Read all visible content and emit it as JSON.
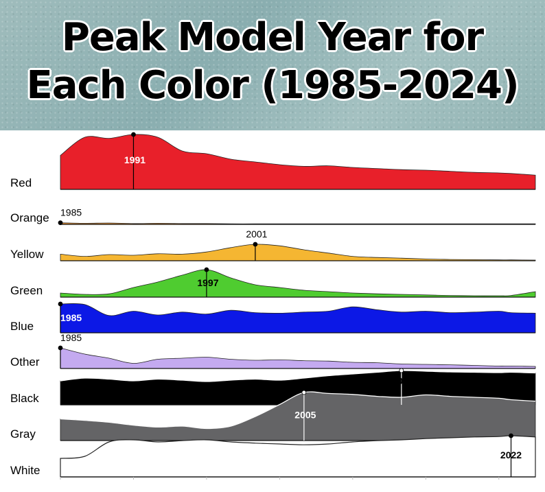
{
  "title_lines": [
    "Peak Model Year for",
    "Each Color (1985-2024)"
  ],
  "chart_data": {
    "type": "area",
    "title": "Peak Model Year for Each Color (1985-2024)",
    "x_range": [
      1985,
      2024
    ],
    "x": [
      1985,
      1987,
      1989,
      1991,
      1993,
      1995,
      1997,
      1999,
      2001,
      2003,
      2005,
      2007,
      2009,
      2011,
      2013,
      2015,
      2017,
      2019,
      2021,
      2022,
      2024
    ],
    "series": [
      {
        "name": "Red",
        "color": "#e8202a",
        "peak_year": "1991",
        "peak_label_color": "#ffffff",
        "peak_label_pos": "inside",
        "values": [
          0.62,
          0.95,
          0.93,
          1.0,
          0.95,
          0.7,
          0.65,
          0.55,
          0.5,
          0.45,
          0.42,
          0.43,
          0.4,
          0.38,
          0.36,
          0.35,
          0.33,
          0.31,
          0.3,
          0.29,
          0.26
        ]
      },
      {
        "name": "Orange",
        "color": "#e08a2c",
        "peak_year": "1985",
        "peak_label_color": "#000000",
        "peak_label_pos": "above",
        "values": [
          0.06,
          0.04,
          0.05,
          0.03,
          0.04,
          0.03,
          0.03,
          0.02,
          0.02,
          0.02,
          0.02,
          0.02,
          0.02,
          0.02,
          0.02,
          0.02,
          0.02,
          0.02,
          0.02,
          0.02,
          0.02
        ]
      },
      {
        "name": "Yellow",
        "color": "#f5b632",
        "peak_year": "2001",
        "peak_label_color": "#000000",
        "peak_label_pos": "above",
        "values": [
          0.3,
          0.2,
          0.28,
          0.25,
          0.32,
          0.3,
          0.4,
          0.6,
          0.75,
          0.68,
          0.5,
          0.35,
          0.2,
          0.15,
          0.12,
          0.08,
          0.06,
          0.05,
          0.04,
          0.04,
          0.03
        ]
      },
      {
        "name": "Green",
        "color": "#4fcc30",
        "peak_year": "1997",
        "peak_label_color": "#000000",
        "peak_label_pos": "inside",
        "values": [
          0.15,
          0.1,
          0.12,
          0.35,
          0.55,
          0.8,
          1.0,
          0.7,
          0.45,
          0.35,
          0.25,
          0.2,
          0.15,
          0.12,
          0.1,
          0.08,
          0.06,
          0.05,
          0.05,
          0.06,
          0.2
        ]
      },
      {
        "name": "Blue",
        "color": "#0c18e6",
        "peak_year": "1985",
        "peak_label_color": "#ffffff",
        "peak_label_pos": "inside",
        "values": [
          1.0,
          0.98,
          0.6,
          0.75,
          0.62,
          0.72,
          0.65,
          0.78,
          0.7,
          0.68,
          0.72,
          0.75,
          0.9,
          0.8,
          0.72,
          0.75,
          0.7,
          0.72,
          0.75,
          0.7,
          0.68
        ]
      },
      {
        "name": "Other",
        "color": "#c4aaf0",
        "peak_year": "1985",
        "peak_label_color": "#000000",
        "peak_label_pos": "above",
        "values": [
          1.0,
          0.7,
          0.5,
          0.25,
          0.45,
          0.5,
          0.55,
          0.45,
          0.4,
          0.42,
          0.38,
          0.36,
          0.3,
          0.28,
          0.22,
          0.2,
          0.18,
          0.15,
          0.12,
          0.12,
          0.1
        ]
      },
      {
        "name": "Black",
        "color": "#000000",
        "peak_year": "2013",
        "peak_label_color": "#000000",
        "peak_label_pos": "below",
        "values": [
          0.7,
          0.78,
          0.75,
          0.7,
          0.75,
          0.72,
          0.68,
          0.72,
          0.75,
          0.72,
          0.78,
          0.85,
          0.9,
          0.95,
          1.0,
          0.98,
          0.96,
          0.95,
          0.94,
          0.95,
          0.93
        ]
      },
      {
        "name": "Gray",
        "color": "#646466",
        "peak_year": "2005",
        "peak_label_color": "#ffffff",
        "peak_label_pos": "inside",
        "values": [
          0.45,
          0.42,
          0.38,
          0.32,
          0.28,
          0.3,
          0.25,
          0.3,
          0.5,
          0.75,
          1.0,
          0.98,
          0.96,
          0.92,
          0.9,
          0.95,
          0.92,
          0.9,
          0.88,
          0.85,
          0.82
        ]
      },
      {
        "name": "White",
        "color": "#ffffff",
        "peak_year": "2022",
        "peak_label_color": "#000000",
        "peak_label_pos": "inside",
        "values": [
          0.45,
          0.5,
          0.85,
          0.9,
          0.85,
          0.88,
          0.9,
          0.85,
          0.82,
          0.8,
          0.78,
          0.8,
          0.85,
          0.88,
          0.9,
          0.93,
          0.95,
          0.97,
          0.98,
          1.0,
          0.97
        ]
      }
    ]
  }
}
